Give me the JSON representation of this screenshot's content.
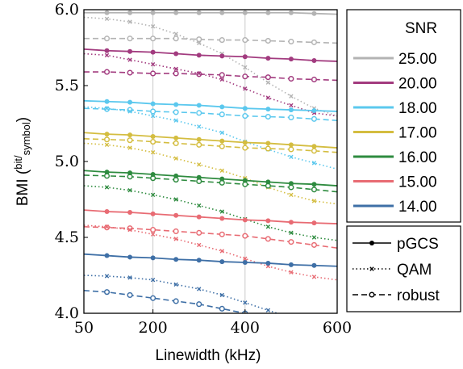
{
  "chart_data": {
    "type": "line",
    "x": [
      50,
      100,
      150,
      200,
      250,
      300,
      350,
      400,
      450,
      500,
      550,
      600
    ],
    "xlabel": "Linewidth (kHz)",
    "ylabel_main": "BMI (",
    "ylabel_sup": "bit",
    "ylabel_sub": "symbol",
    "ylabel_close": ")",
    "xlim": [
      50,
      600
    ],
    "ylim": [
      4.0,
      6.0
    ],
    "xticks": [
      50,
      200,
      400,
      600
    ],
    "xtick_labels": [
      "50",
      "200",
      "400",
      "600"
    ],
    "yticks": [
      4.0,
      4.5,
      5.0,
      5.5,
      6.0
    ],
    "ytick_labels": [
      "4.0",
      "4.5",
      "5.0",
      "5.5",
      "6.0"
    ],
    "grid": true,
    "legend_snr_title": "SNR",
    "legend_placement": "right",
    "snr_groups": [
      {
        "snr": "25.00",
        "color": "#b3b3b3",
        "pGCS": [
          5.98,
          5.98,
          5.98,
          5.98,
          5.98,
          5.98,
          5.98,
          5.98,
          5.98,
          5.98,
          5.975,
          5.97
        ],
        "QAM": [
          5.95,
          5.94,
          5.92,
          5.89,
          5.84,
          5.78,
          5.71,
          5.62,
          5.52,
          5.43,
          5.35,
          5.3
        ],
        "robust": [
          5.81,
          5.81,
          5.81,
          5.81,
          5.81,
          5.805,
          5.8,
          5.8,
          5.795,
          5.79,
          5.785,
          5.78
        ]
      },
      {
        "snr": "20.00",
        "color": "#a23b7f",
        "pGCS": [
          5.74,
          5.73,
          5.725,
          5.72,
          5.71,
          5.7,
          5.695,
          5.69,
          5.68,
          5.675,
          5.665,
          5.66
        ],
        "QAM": [
          5.71,
          5.7,
          5.67,
          5.64,
          5.61,
          5.58,
          5.54,
          5.48,
          5.42,
          5.37,
          5.32,
          5.3
        ],
        "robust": [
          5.59,
          5.59,
          5.585,
          5.58,
          5.58,
          5.575,
          5.57,
          5.56,
          5.555,
          5.545,
          5.54,
          5.535
        ]
      },
      {
        "snr": "18.00",
        "color": "#5bc8ee",
        "pGCS": [
          5.4,
          5.395,
          5.39,
          5.38,
          5.375,
          5.37,
          5.36,
          5.35,
          5.345,
          5.34,
          5.335,
          5.33
        ],
        "QAM": [
          5.36,
          5.35,
          5.33,
          5.3,
          5.27,
          5.23,
          5.19,
          5.13,
          5.08,
          5.03,
          4.99,
          4.95
        ],
        "robust": [
          5.35,
          5.345,
          5.34,
          5.33,
          5.325,
          5.32,
          5.31,
          5.3,
          5.295,
          5.29,
          5.28,
          5.27
        ]
      },
      {
        "snr": "17.00",
        "color": "#d4bd40",
        "pGCS": [
          5.19,
          5.18,
          5.175,
          5.165,
          5.155,
          5.145,
          5.135,
          5.125,
          5.12,
          5.11,
          5.1,
          5.09
        ],
        "QAM": [
          5.12,
          5.11,
          5.09,
          5.06,
          5.02,
          4.98,
          4.94,
          4.89,
          4.83,
          4.78,
          4.74,
          4.72
        ],
        "robust": [
          5.15,
          5.145,
          5.14,
          5.13,
          5.12,
          5.11,
          5.1,
          5.09,
          5.085,
          5.08,
          5.07,
          5.06
        ]
      },
      {
        "snr": "16.00",
        "color": "#2e8b3f",
        "pGCS": [
          4.94,
          4.93,
          4.925,
          4.915,
          4.905,
          4.895,
          4.885,
          4.875,
          4.865,
          4.855,
          4.85,
          4.84
        ],
        "QAM": [
          4.84,
          4.83,
          4.81,
          4.78,
          4.75,
          4.71,
          4.67,
          4.62,
          4.57,
          4.53,
          4.5,
          4.48
        ],
        "robust": [
          4.91,
          4.905,
          4.9,
          4.89,
          4.88,
          4.87,
          4.86,
          4.85,
          4.84,
          4.83,
          4.815,
          4.8
        ]
      },
      {
        "snr": "15.00",
        "color": "#e86b73",
        "pGCS": [
          4.68,
          4.67,
          4.665,
          4.655,
          4.645,
          4.635,
          4.625,
          4.615,
          4.61,
          4.6,
          4.595,
          4.59
        ],
        "QAM": [
          4.58,
          4.57,
          4.55,
          4.52,
          4.49,
          4.45,
          4.41,
          4.36,
          4.31,
          4.27,
          4.24,
          4.22
        ],
        "robust": [
          4.57,
          4.565,
          4.56,
          4.55,
          4.54,
          4.53,
          4.52,
          4.51,
          4.49,
          4.47,
          4.45,
          4.43
        ]
      },
      {
        "snr": "14.00",
        "color": "#3e6fa6",
        "pGCS": [
          4.39,
          4.38,
          4.37,
          4.365,
          4.355,
          4.35,
          4.34,
          4.335,
          4.33,
          4.32,
          4.315,
          4.31
        ],
        "QAM": [
          4.25,
          4.245,
          4.235,
          4.22,
          4.19,
          4.16,
          4.12,
          4.07,
          4.02,
          3.97,
          3.93,
          3.9
        ],
        "robust": [
          4.15,
          4.14,
          4.12,
          4.1,
          4.08,
          4.06,
          4.03,
          4.0,
          3.97,
          3.94,
          3.91,
          3.88
        ]
      }
    ],
    "style_legend": [
      {
        "label": "pGCS",
        "dash": "solid",
        "marker": "dot"
      },
      {
        "label": "QAM",
        "dash": "dotted",
        "marker": "cross"
      },
      {
        "label": "robust",
        "dash": "dashed",
        "marker": "circle"
      }
    ]
  }
}
